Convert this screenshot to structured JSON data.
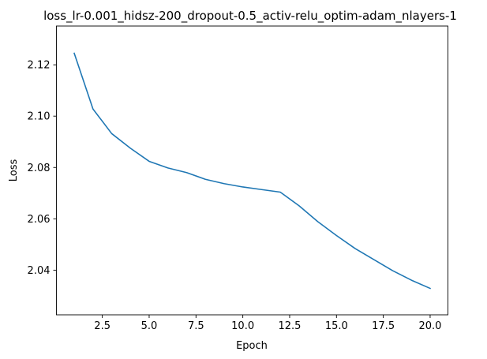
{
  "chart_data": {
    "type": "line",
    "title": "loss_lr-0.001_hidsz-200_dropout-0.5_activ-relu_optim-adam_nlayers-1",
    "xlabel": "Epoch",
    "ylabel": "Loss",
    "xlim": [
      0.05,
      20.95
    ],
    "ylim": [
      2.0226,
      2.1351
    ],
    "xticks": [
      2.5,
      5.0,
      7.5,
      10.0,
      12.5,
      15.0,
      17.5,
      20.0
    ],
    "xtick_labels": [
      "2.5",
      "5.0",
      "7.5",
      "10.0",
      "12.5",
      "15.0",
      "17.5",
      "20.0"
    ],
    "yticks": [
      2.04,
      2.06,
      2.08,
      2.1,
      2.12
    ],
    "ytick_labels": [
      "2.04",
      "2.06",
      "2.08",
      "2.10",
      "2.12"
    ],
    "grid": false,
    "legend": null,
    "series": [
      {
        "color": "#1f77b4",
        "x": [
          1,
          2,
          3,
          4,
          5,
          6,
          7,
          8,
          9,
          10,
          11,
          12,
          13,
          14,
          15,
          16,
          17,
          18,
          19,
          20
        ],
        "y": [
          2.1245,
          2.1028,
          2.0932,
          2.0875,
          2.0824,
          2.0798,
          2.078,
          2.0754,
          2.0737,
          2.0724,
          2.0714,
          2.0704,
          2.0651,
          2.0589,
          2.0535,
          2.0484,
          2.0441,
          2.0398,
          2.0361,
          2.0329
        ]
      }
    ]
  }
}
